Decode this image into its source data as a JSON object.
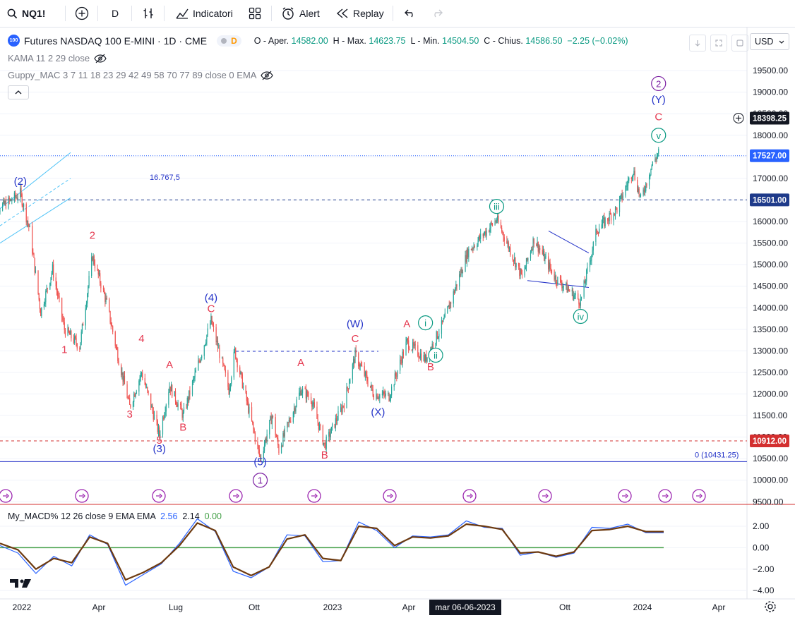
{
  "toolbar": {
    "symbol": "NQ1!",
    "interval": "D",
    "indicators_label": "Indicatori",
    "alert_label": "Alert",
    "replay_label": "Replay",
    "currency": "USD"
  },
  "legend": {
    "symbol_title": "Futures NASDAQ 100 E-MINI · 1D · CME",
    "logo_text": "100",
    "badge_d": "D",
    "o_label": "O - Aper.",
    "o_value": "14582.00",
    "h_label": "H - Max.",
    "h_value": "14623.75",
    "l_label": "L - Min.",
    "l_value": "14504.50",
    "c_label": "C - Chius.",
    "c_value": "14586.50",
    "change": "−2.25 (−0.02%)",
    "indicator1": "KAMA 11 2 29 close",
    "indicator2": "Guppy_MAC 3 7 11 18 23 29 42 49 58 70 77 89 close 0 EMA"
  },
  "macd_legend": {
    "name": "My_MACD% 12 26 close 9 EMA EMA",
    "v1": "2.56",
    "v2": "2.14",
    "v3": "0.00"
  },
  "price_axis": [
    "19500.00",
    "19000.00",
    "18500.00",
    "18000.00",
    "17500.00",
    "17000.00",
    "16500.00",
    "16000.00",
    "15500.00",
    "15000.00",
    "14500.00",
    "14000.00",
    "13500.00",
    "13000.00",
    "12500.00",
    "12000.00",
    "11500.00",
    "11000.00",
    "10500.00",
    "10000.00",
    "9500.00"
  ],
  "macd_axis": [
    "2.00",
    "0.00",
    "−2.00",
    "−4.00"
  ],
  "time_axis": [
    "2022",
    "Apr",
    "Lug",
    "Ott",
    "2023",
    "Apr",
    "Ott",
    "2024",
    "Apr"
  ],
  "crosshair_date": "mar 06-06-2023",
  "price_tags": [
    {
      "label": "18398.25",
      "value": 18398.25,
      "color": "#131722"
    },
    {
      "label": "17527.00",
      "value": 17527,
      "color": "#2962ff"
    },
    {
      "label": "16501.00",
      "value": 16501,
      "color": "#1e3a8a"
    },
    {
      "label": "10912.00",
      "value": 10912,
      "color": "#d32f2f"
    }
  ],
  "annotations": {
    "level_text": "16.767,5",
    "fib_zero": "0 (10431.25)"
  },
  "colors": {
    "up": "#26a69a",
    "down": "#ef5350",
    "wave_red": "#e53950",
    "wave_blue": "#2433c8",
    "wave_purple": "#7b1fa2",
    "wave_teal": "#089981",
    "macd_fast": "#2962ff",
    "macd_slow": "#6d3a10",
    "zero_line": "#43a047"
  },
  "chart_data": {
    "type": "candlestick",
    "title": "Futures NASDAQ 100 E-MINI · 1D · CME",
    "ylim": [
      9500,
      19700
    ],
    "x_range": [
      "2021-12",
      "2024-05"
    ],
    "close_path": [
      [
        "2021-11-28",
        16200
      ],
      [
        "2021-12-20",
        16450
      ],
      [
        "2022-01-03",
        16650
      ],
      [
        "2022-01-14",
        15800
      ],
      [
        "2022-01-27",
        13900
      ],
      [
        "2022-02-10",
        14900
      ],
      [
        "2022-02-24",
        13500
      ],
      [
        "2022-03-14",
        13100
      ],
      [
        "2022-03-29",
        15200
      ],
      [
        "2022-04-15",
        14100
      ],
      [
        "2022-04-29",
        12800
      ],
      [
        "2022-05-12",
        11700
      ],
      [
        "2022-05-26",
        12500
      ],
      [
        "2022-06-16",
        11050
      ],
      [
        "2022-06-28",
        12200
      ],
      [
        "2022-07-14",
        11500
      ],
      [
        "2022-08-16",
        13700
      ],
      [
        "2022-09-06",
        12100
      ],
      [
        "2022-09-13",
        13000
      ],
      [
        "2022-10-13",
        10500
      ],
      [
        "2022-10-27",
        11500
      ],
      [
        "2022-11-04",
        10700
      ],
      [
        "2022-11-30",
        12100
      ],
      [
        "2022-12-12",
        11900
      ],
      [
        "2022-12-28",
        10800
      ],
      [
        "2023-01-20",
        11800
      ],
      [
        "2023-02-02",
        12900
      ],
      [
        "2023-02-24",
        12000
      ],
      [
        "2023-03-14",
        11950
      ],
      [
        "2023-04-04",
        13200
      ],
      [
        "2023-04-26",
        12800
      ],
      [
        "2023-05-18",
        13700
      ],
      [
        "2023-06-15",
        15300
      ],
      [
        "2023-07-19",
        16050
      ],
      [
        "2023-08-18",
        14700
      ],
      [
        "2023-09-01",
        15600
      ],
      [
        "2023-09-26",
        14700
      ],
      [
        "2023-10-26",
        14150
      ],
      [
        "2023-11-14",
        15800
      ],
      [
        "2023-12-08",
        16300
      ],
      [
        "2023-12-27",
        17200
      ],
      [
        "2024-01-05",
        16500
      ],
      [
        "2024-01-18",
        17300
      ],
      [
        "2024-01-26",
        17600
      ]
    ],
    "waves": [
      {
        "label": "(2)",
        "date": "2022-01-03",
        "value": 16850,
        "color": "blue"
      },
      {
        "label": "2",
        "date": "2022-03-29",
        "value": 15600,
        "color": "red"
      },
      {
        "label": "1",
        "date": "2022-02-24",
        "value": 12950,
        "color": "red"
      },
      {
        "label": "4",
        "date": "2022-05-26",
        "value": 13200,
        "color": "red"
      },
      {
        "label": "3",
        "date": "2022-05-12",
        "value": 11450,
        "color": "red"
      },
      {
        "label": "A",
        "date": "2022-06-28",
        "value": 12600,
        "color": "red"
      },
      {
        "label": "5",
        "date": "2022-06-16",
        "value": 10850,
        "color": "red"
      },
      {
        "label": "B",
        "date": "2022-07-14",
        "value": 11150,
        "color": "red"
      },
      {
        "label": "(3)",
        "date": "2022-06-16",
        "value": 10650,
        "color": "blue"
      },
      {
        "label": "(4)",
        "date": "2022-08-16",
        "value": 14150,
        "color": "blue"
      },
      {
        "label": "C",
        "date": "2022-08-16",
        "value": 13900,
        "color": "red"
      },
      {
        "label": "(5)",
        "date": "2022-10-13",
        "value": 10350,
        "color": "blue"
      },
      {
        "label": "1",
        "date": "2022-10-13",
        "value": 10000,
        "color": "purple",
        "circle": true
      },
      {
        "label": "A",
        "date": "2022-11-30",
        "value": 12650,
        "color": "red"
      },
      {
        "label": "B",
        "date": "2022-12-28",
        "value": 10500,
        "color": "red"
      },
      {
        "label": "(W)",
        "date": "2023-02-02",
        "value": 13550,
        "color": "blue"
      },
      {
        "label": "C",
        "date": "2023-02-02",
        "value": 13200,
        "color": "red"
      },
      {
        "label": "(X)",
        "date": "2023-03-01",
        "value": 11500,
        "color": "blue"
      },
      {
        "label": "A",
        "date": "2023-04-04",
        "value": 13550,
        "color": "red"
      },
      {
        "label": "B",
        "date": "2023-05-02",
        "value": 12550,
        "color": "red"
      },
      {
        "label": "i",
        "date": "2023-04-26",
        "value": 13650,
        "color": "teal",
        "circle": true
      },
      {
        "label": "ii",
        "date": "2023-05-08",
        "value": 12900,
        "color": "teal",
        "circle": true
      },
      {
        "label": "iii",
        "date": "2023-07-19",
        "value": 16350,
        "color": "teal",
        "circle": true
      },
      {
        "label": "iv",
        "date": "2023-10-26",
        "value": 13800,
        "color": "teal",
        "circle": true
      },
      {
        "label": "v",
        "date": "2024-01-26",
        "value": 18000,
        "color": "teal",
        "circle": true
      },
      {
        "label": "C",
        "date": "2024-01-26",
        "value": 18350,
        "color": "red"
      },
      {
        "label": "(Y)",
        "date": "2024-01-26",
        "value": 18750,
        "color": "blue"
      },
      {
        "label": "2",
        "date": "2024-01-26",
        "value": 19200,
        "color": "purple",
        "circle": true
      }
    ],
    "horizontal_levels": [
      {
        "value": 17527,
        "style": "dotted",
        "color": "#2962ff"
      },
      {
        "value": 16501,
        "style": "dashed",
        "color": "#1e3a8a"
      },
      {
        "value": 10912,
        "style": "dashed",
        "color": "#d32f2f"
      },
      {
        "value": 10431.25,
        "style": "solid",
        "color": "#2433c8"
      }
    ],
    "macd_series": [
      {
        "name": "fast",
        "values": [
          0.2,
          -0.5,
          -2.4,
          -0.8,
          -1.7,
          1.2,
          0.3,
          -3.5,
          -2.5,
          -1.5,
          0.4,
          2.7,
          1.5,
          -2.2,
          -2.8,
          -1.8,
          1.2,
          1.1,
          -1.3,
          -1.2,
          2.4,
          1.6,
          0.0,
          1.1,
          1.0,
          1.2,
          2.5,
          1.9,
          1.8,
          -0.7,
          -0.4,
          -0.9,
          -0.5,
          1.9,
          1.8,
          2.2,
          1.4,
          1.4
        ]
      },
      {
        "name": "signal",
        "values": [
          0.4,
          -0.2,
          -2.0,
          -1.0,
          -1.4,
          1.0,
          0.4,
          -3.0,
          -2.3,
          -1.4,
          0.2,
          2.3,
          1.6,
          -1.8,
          -2.6,
          -1.8,
          0.8,
          1.2,
          -1.0,
          -1.2,
          2.0,
          1.8,
          0.2,
          1.0,
          0.9,
          1.1,
          2.2,
          2.0,
          1.7,
          -0.5,
          -0.4,
          -0.8,
          -0.4,
          1.6,
          1.7,
          2.0,
          1.5,
          1.5
        ]
      }
    ],
    "macd_ylim": [
      -4.5,
      2.8
    ]
  }
}
